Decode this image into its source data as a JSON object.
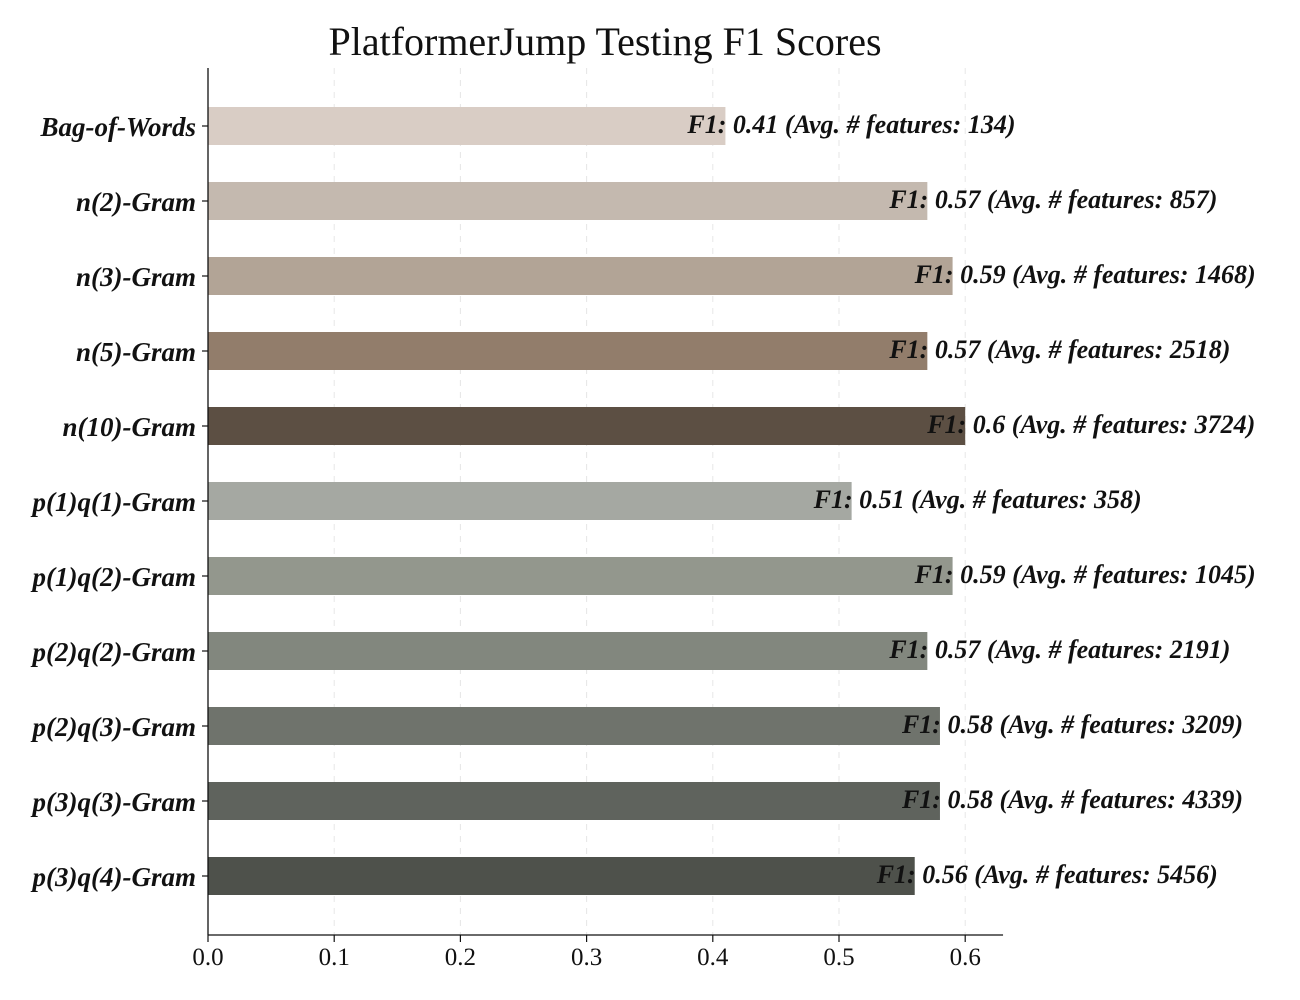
{
  "chart_data": {
    "type": "bar",
    "orientation": "horizontal",
    "title": "PlatformerJump Testing F1 Scores",
    "xlabel": "",
    "ylabel": "",
    "xlim": [
      0,
      0.63
    ],
    "xticks": [
      "0.0",
      "0.1",
      "0.2",
      "0.3",
      "0.4",
      "0.5",
      "0.6"
    ],
    "grid": "vertical dashed",
    "categories": [
      "Bag-of-Words",
      "n(2)-Gram",
      "n(3)-Gram",
      "n(5)-Gram",
      "n(10)-Gram",
      "p(1)q(1)-Gram",
      "p(1)q(2)-Gram",
      "p(2)q(2)-Gram",
      "p(2)q(3)-Gram",
      "p(3)q(3)-Gram",
      "p(3)q(4)-Gram"
    ],
    "values": [
      0.41,
      0.57,
      0.59,
      0.57,
      0.6,
      0.51,
      0.59,
      0.57,
      0.58,
      0.58,
      0.56
    ],
    "data_labels": [
      "F1: 0.41 (Avg. # features: 134)",
      "F1: 0.57 (Avg. # features: 857)",
      "F1: 0.59 (Avg. # features: 1468)",
      "F1: 0.57 (Avg. # features: 2518)",
      "F1: 0.6 (Avg. # features: 3724)",
      "F1: 0.51 (Avg. # features: 358)",
      "F1: 0.59 (Avg. # features: 1045)",
      "F1: 0.57 (Avg. # features: 2191)",
      "F1: 0.58 (Avg. # features: 3209)",
      "F1: 0.58 (Avg. # features: 4339)",
      "F1: 0.56 (Avg. # features: 5456)"
    ],
    "colors": [
      "#d9cdc5",
      "#c4b9af",
      "#b2a496",
      "#927d6b",
      "#5c4f43",
      "#a5a8a2",
      "#93978d",
      "#82877e",
      "#6f736c",
      "#5f635d",
      "#4e514b"
    ]
  }
}
